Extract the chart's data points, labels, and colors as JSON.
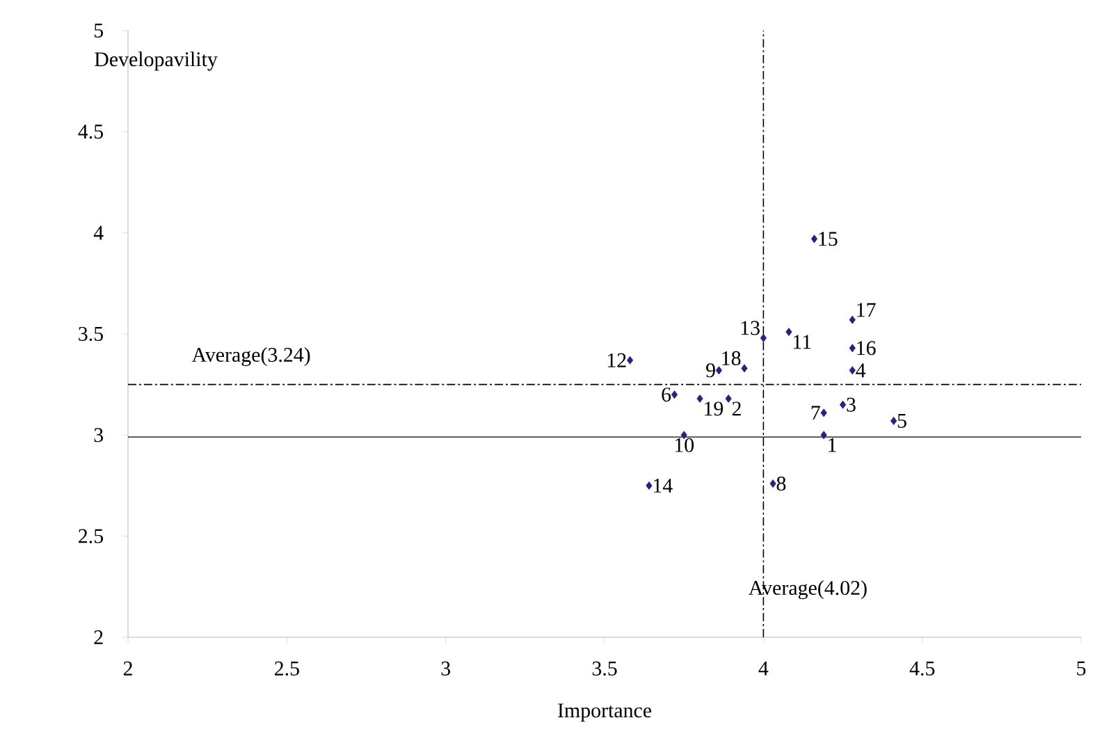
{
  "chart_data": {
    "type": "scatter",
    "xlabel": "Importance",
    "ylabel": "Developavility",
    "x": [
      4.19,
      3.89,
      4.25,
      4.28,
      4.41,
      3.72,
      4.19,
      4.03,
      3.86,
      3.75,
      4.08,
      3.58,
      4.0,
      3.64,
      4.16,
      4.28,
      4.28,
      3.94,
      3.8
    ],
    "series": [
      {
        "color": "#24247a",
        "values": [
          3.0,
          3.18,
          3.15,
          3.32,
          3.07,
          3.2,
          3.11,
          2.76,
          3.32,
          3.0,
          3.51,
          3.37,
          3.48,
          2.75,
          3.97,
          3.43,
          3.57,
          3.33,
          3.18
        ]
      }
    ],
    "marker": "diamond",
    "xlim": [
      2,
      5
    ],
    "ylim": [
      2,
      5
    ],
    "xticks": [
      2,
      2.5,
      3,
      3.5,
      4,
      4.5,
      5
    ],
    "yticks": [
      2,
      2.5,
      3,
      3.5,
      4,
      4.5,
      5
    ],
    "grid": false,
    "ref_lines": [
      {
        "axis": "x",
        "value": 4.0,
        "label": "Average(4.02)",
        "line_style": "dashed"
      },
      {
        "axis": "y",
        "value": 3.25,
        "label": "Average(3.24)",
        "line_style": "dashed"
      },
      {
        "axis": "y",
        "value": 2.99,
        "line_style": "solid"
      }
    ],
    "annotations": [
      {
        "text": "1",
        "x": 4.19,
        "y": 3.0
      },
      {
        "text": "2",
        "x": 3.89,
        "y": 3.18
      },
      {
        "text": "3",
        "x": 4.25,
        "y": 3.15
      },
      {
        "text": "4",
        "x": 4.28,
        "y": 3.32
      },
      {
        "text": "5",
        "x": 4.41,
        "y": 3.07
      },
      {
        "text": "6",
        "x": 3.72,
        "y": 3.2
      },
      {
        "text": "7",
        "x": 4.19,
        "y": 3.11
      },
      {
        "text": "8",
        "x": 4.03,
        "y": 2.76
      },
      {
        "text": "9",
        "x": 3.86,
        "y": 3.32
      },
      {
        "text": "10",
        "x": 3.75,
        "y": 3.0
      },
      {
        "text": "11",
        "x": 4.08,
        "y": 3.51
      },
      {
        "text": "12",
        "x": 3.58,
        "y": 3.37
      },
      {
        "text": "13",
        "x": 4.0,
        "y": 3.48
      },
      {
        "text": "14",
        "x": 3.64,
        "y": 2.75
      },
      {
        "text": "15",
        "x": 4.16,
        "y": 3.97
      },
      {
        "text": "16",
        "x": 4.28,
        "y": 3.43
      },
      {
        "text": "17",
        "x": 4.28,
        "y": 3.57
      },
      {
        "text": "18",
        "x": 3.94,
        "y": 3.33
      },
      {
        "text": "19",
        "x": 3.8,
        "y": 3.18
      }
    ]
  }
}
